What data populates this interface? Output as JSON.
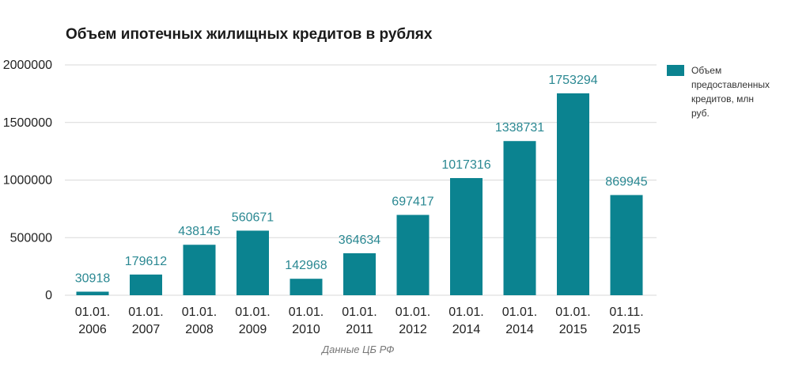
{
  "colors": {
    "bar": "#0b8390",
    "label": "#2a8892",
    "grid": "#d9d9d9",
    "axis_text": "#222222"
  },
  "chart_data": {
    "type": "bar",
    "title": "Объем ипотечных жилищных кредитов в рублях",
    "categories": [
      [
        "01.01.",
        "2006"
      ],
      [
        "01.01.",
        "2007"
      ],
      [
        "01.01.",
        "2008"
      ],
      [
        "01.01.",
        "2009"
      ],
      [
        "01.01.",
        "2010"
      ],
      [
        "01.01.",
        "2011"
      ],
      [
        "01.01.",
        "2012"
      ],
      [
        "01.01.",
        "2014"
      ],
      [
        "01.01.",
        "2014"
      ],
      [
        "01.01.",
        "2015"
      ],
      [
        "01.11.",
        "2015"
      ]
    ],
    "series": [
      {
        "name": "Объем предоставленных кредитов, млн руб.",
        "values": [
          30918,
          179612,
          438145,
          560671,
          142968,
          364634,
          697417,
          1017316,
          1338731,
          1753294,
          869945
        ]
      }
    ],
    "yticks": [
      "0",
      "500000",
      "1000000",
      "1500000",
      "2000000"
    ],
    "ylim": [
      0,
      2000000
    ],
    "grid": true,
    "legend_position": "right",
    "source": "Данные ЦБ РФ"
  }
}
